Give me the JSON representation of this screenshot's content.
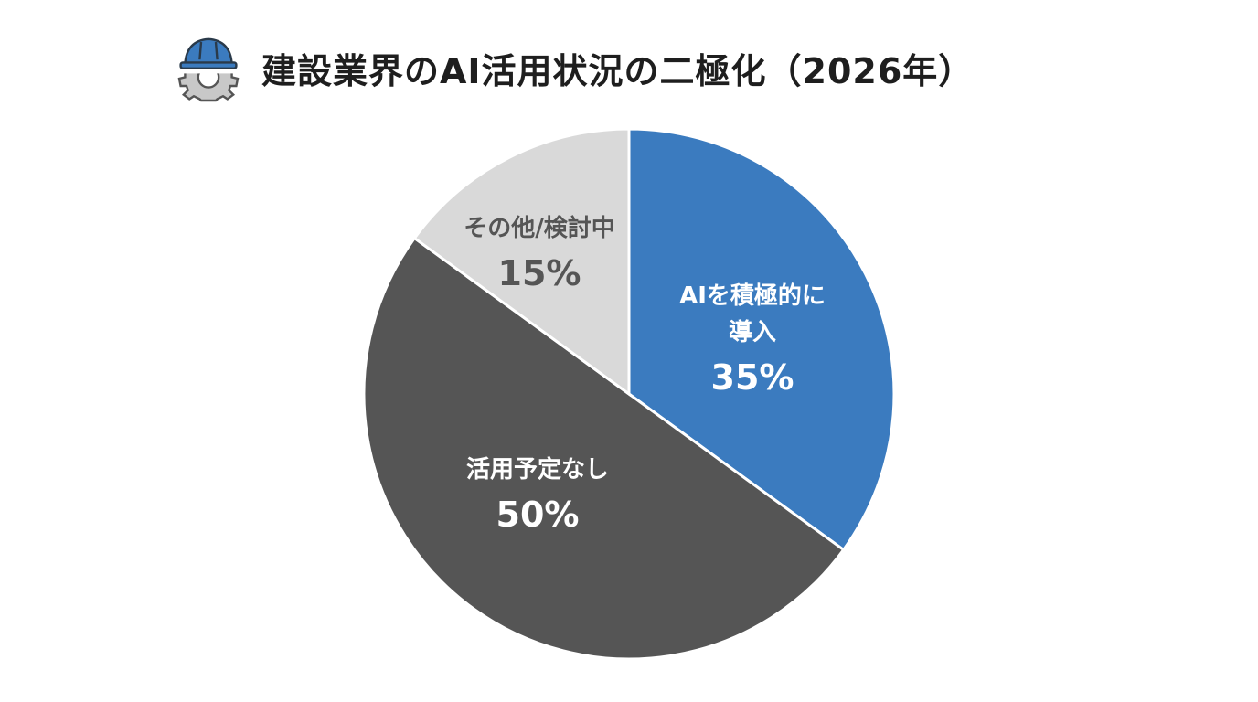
{
  "title": "建設業界のAI活用状況の二極化（2026年）",
  "icon": "hardhat-gear-icon",
  "chart_data": {
    "type": "pie",
    "title": "建設業界のAI活用状況の二極化（2026年）",
    "start": "top",
    "direction": "clockwise",
    "slices": [
      {
        "label_lines": [
          "AIを積極的に",
          "導入"
        ],
        "value": 35,
        "value_label": "35%",
        "color": "#3b7bbf",
        "text_color": "#ffffff"
      },
      {
        "label_lines": [
          "活用予定なし"
        ],
        "value": 50,
        "value_label": "50%",
        "color": "#555555",
        "text_color": "#ffffff"
      },
      {
        "label_lines": [
          "その他/検討中"
        ],
        "value": 15,
        "value_label": "15%",
        "color": "#d9d9d9",
        "text_color": "#555555"
      }
    ]
  }
}
